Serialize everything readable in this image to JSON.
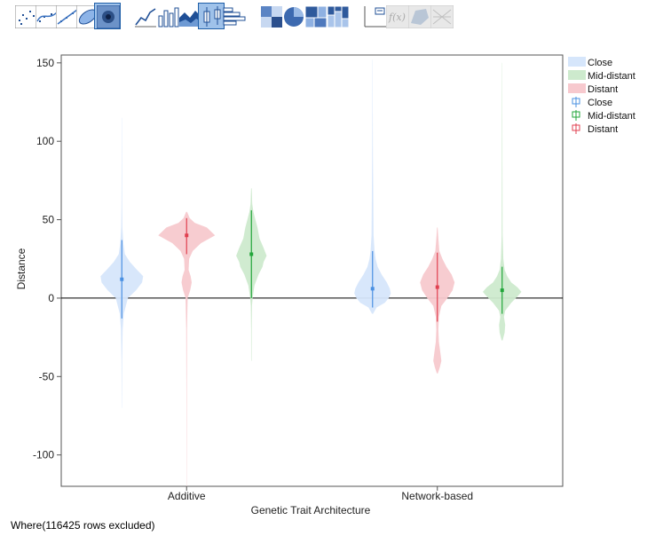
{
  "toolbar": {
    "buttons": [
      {
        "name": "points-icon",
        "active": false
      },
      {
        "name": "smoother-icon",
        "active": false
      },
      {
        "name": "line-of-fit-icon",
        "active": false
      },
      {
        "name": "ellipse-icon",
        "active": false
      },
      {
        "name": "contour-icon",
        "active": true
      },
      {
        "name": "line-icon",
        "active": false
      },
      {
        "name": "bar-icon",
        "active": false
      },
      {
        "name": "area-icon",
        "active": false
      },
      {
        "name": "box-plot-icon",
        "active": true
      },
      {
        "name": "histogram-icon",
        "active": false
      },
      {
        "name": "heatmap-icon",
        "active": false
      },
      {
        "name": "pie-icon",
        "active": false
      },
      {
        "name": "treemap-icon",
        "active": false
      },
      {
        "name": "mosaic-icon",
        "active": false
      },
      {
        "name": "caption-box-icon",
        "active": false
      },
      {
        "name": "formula-icon",
        "active": false,
        "disabled": true
      },
      {
        "name": "map-shapes-icon",
        "active": false,
        "disabled": true
      },
      {
        "name": "custom-map-icon",
        "active": false,
        "disabled": true
      }
    ]
  },
  "footer": {
    "note": "Where(116425 rows excluded)"
  },
  "colors": {
    "Close": "#4a90e2",
    "Close_fill": "#d6e6fb",
    "Mid-distant": "#22a63a",
    "Mid-distant_fill": "#cdeacd",
    "Distant": "#e04050",
    "Distant_fill": "#f7c9ce"
  },
  "chart_data": {
    "type": "violin",
    "xlabel": "Genetic Trait Architecture",
    "ylabel": "Distance",
    "ylim": [
      -120,
      155
    ],
    "yticks": [
      -100,
      -50,
      0,
      50,
      100,
      150
    ],
    "categories": [
      "Additive",
      "Network-based"
    ],
    "legend": {
      "position": "right",
      "entries": [
        {
          "label": "Close",
          "kind": "fill"
        },
        {
          "label": "Mid-distant",
          "kind": "fill"
        },
        {
          "label": "Distant",
          "kind": "fill"
        },
        {
          "label": "Close",
          "kind": "box"
        },
        {
          "label": "Mid-distant",
          "kind": "box"
        },
        {
          "label": "Distant",
          "kind": "box"
        }
      ]
    },
    "reference_line_y": 0,
    "groups": [
      {
        "category": "Additive",
        "series": "Close",
        "median": 12,
        "q1": 5,
        "q3": 18,
        "whisker_low": -13,
        "whisker_high": 37,
        "min": -70,
        "max": 115,
        "density": [
          [
            -70,
            0.1
          ],
          [
            -40,
            0.3
          ],
          [
            -20,
            0.8
          ],
          [
            -10,
            2
          ],
          [
            0,
            6
          ],
          [
            5,
            14
          ],
          [
            10,
            20
          ],
          [
            14,
            21
          ],
          [
            18,
            15
          ],
          [
            23,
            8
          ],
          [
            28,
            3
          ],
          [
            35,
            1.5
          ],
          [
            45,
            0.6
          ],
          [
            60,
            0.3
          ],
          [
            80,
            0.2
          ],
          [
            115,
            0.1
          ]
        ]
      },
      {
        "category": "Additive",
        "series": "Distant",
        "median": 40,
        "q1": 28,
        "q3": 45,
        "whisker_low": 28,
        "whisker_high": 51,
        "min": -120,
        "max": 55,
        "density": [
          [
            -120,
            0.1
          ],
          [
            -60,
            0.2
          ],
          [
            -20,
            0.4
          ],
          [
            0,
            1
          ],
          [
            5,
            3.5
          ],
          [
            10,
            5
          ],
          [
            14,
            4
          ],
          [
            18,
            2
          ],
          [
            25,
            2.5
          ],
          [
            30,
            6
          ],
          [
            35,
            14
          ],
          [
            40,
            28
          ],
          [
            45,
            20
          ],
          [
            48,
            8
          ],
          [
            51,
            3
          ],
          [
            55,
            0.5
          ]
        ]
      },
      {
        "category": "Additive",
        "series": "Mid-distant",
        "median": 28,
        "q1": 20,
        "q3": 35,
        "whisker_low": 0,
        "whisker_high": 56,
        "min": -40,
        "max": 70,
        "density": [
          [
            -40,
            0.2
          ],
          [
            -20,
            0.3
          ],
          [
            -5,
            0.6
          ],
          [
            0,
            1.2
          ],
          [
            8,
            3
          ],
          [
            15,
            7
          ],
          [
            20,
            11
          ],
          [
            23,
            12
          ],
          [
            27,
            15
          ],
          [
            32,
            12
          ],
          [
            38,
            8
          ],
          [
            45,
            6
          ],
          [
            50,
            4
          ],
          [
            55,
            2
          ],
          [
            60,
            0.8
          ],
          [
            70,
            0.3
          ]
        ]
      },
      {
        "category": "Network-based",
        "series": "Close",
        "median": 6,
        "q1": 1,
        "q3": 12,
        "whisker_low": -6,
        "whisker_high": 30,
        "min": -10,
        "max": 152,
        "density": [
          [
            -10,
            0.5
          ],
          [
            -6,
            4
          ],
          [
            -3,
            12
          ],
          [
            0,
            16
          ],
          [
            3,
            18
          ],
          [
            6,
            17
          ],
          [
            10,
            14
          ],
          [
            15,
            9
          ],
          [
            20,
            5
          ],
          [
            25,
            3
          ],
          [
            30,
            2
          ],
          [
            40,
            1
          ],
          [
            60,
            0.7
          ],
          [
            90,
            0.4
          ],
          [
            120,
            0.2
          ],
          [
            152,
            0.1
          ]
        ]
      },
      {
        "category": "Network-based",
        "series": "Distant",
        "median": 7,
        "q1": -2,
        "q3": 15,
        "whisker_low": -15,
        "whisker_high": 29,
        "min": -48,
        "max": 45,
        "density": [
          [
            -48,
            0.5
          ],
          [
            -44,
            2.5
          ],
          [
            -40,
            4
          ],
          [
            -35,
            3
          ],
          [
            -28,
            1.5
          ],
          [
            -20,
            1
          ],
          [
            -12,
            1.5
          ],
          [
            -5,
            4
          ],
          [
            0,
            10
          ],
          [
            5,
            15
          ],
          [
            10,
            17
          ],
          [
            15,
            14
          ],
          [
            20,
            9
          ],
          [
            25,
            5
          ],
          [
            30,
            2
          ],
          [
            38,
            1
          ],
          [
            45,
            0.3
          ]
        ]
      },
      {
        "category": "Network-based",
        "series": "Mid-distant",
        "median": 5,
        "q1": 2,
        "q3": 8,
        "whisker_low": -10,
        "whisker_high": 20,
        "min": -27,
        "max": 150,
        "density": [
          [
            -27,
            0.5
          ],
          [
            -22,
            2.5
          ],
          [
            -17,
            3
          ],
          [
            -12,
            1.8
          ],
          [
            -8,
            3
          ],
          [
            -3,
            9
          ],
          [
            1,
            15
          ],
          [
            4,
            19
          ],
          [
            7,
            15
          ],
          [
            10,
            9
          ],
          [
            14,
            5
          ],
          [
            18,
            2.5
          ],
          [
            25,
            1.2
          ],
          [
            40,
            0.5
          ],
          [
            80,
            0.3
          ],
          [
            120,
            0.2
          ],
          [
            150,
            0.1
          ]
        ]
      }
    ]
  }
}
